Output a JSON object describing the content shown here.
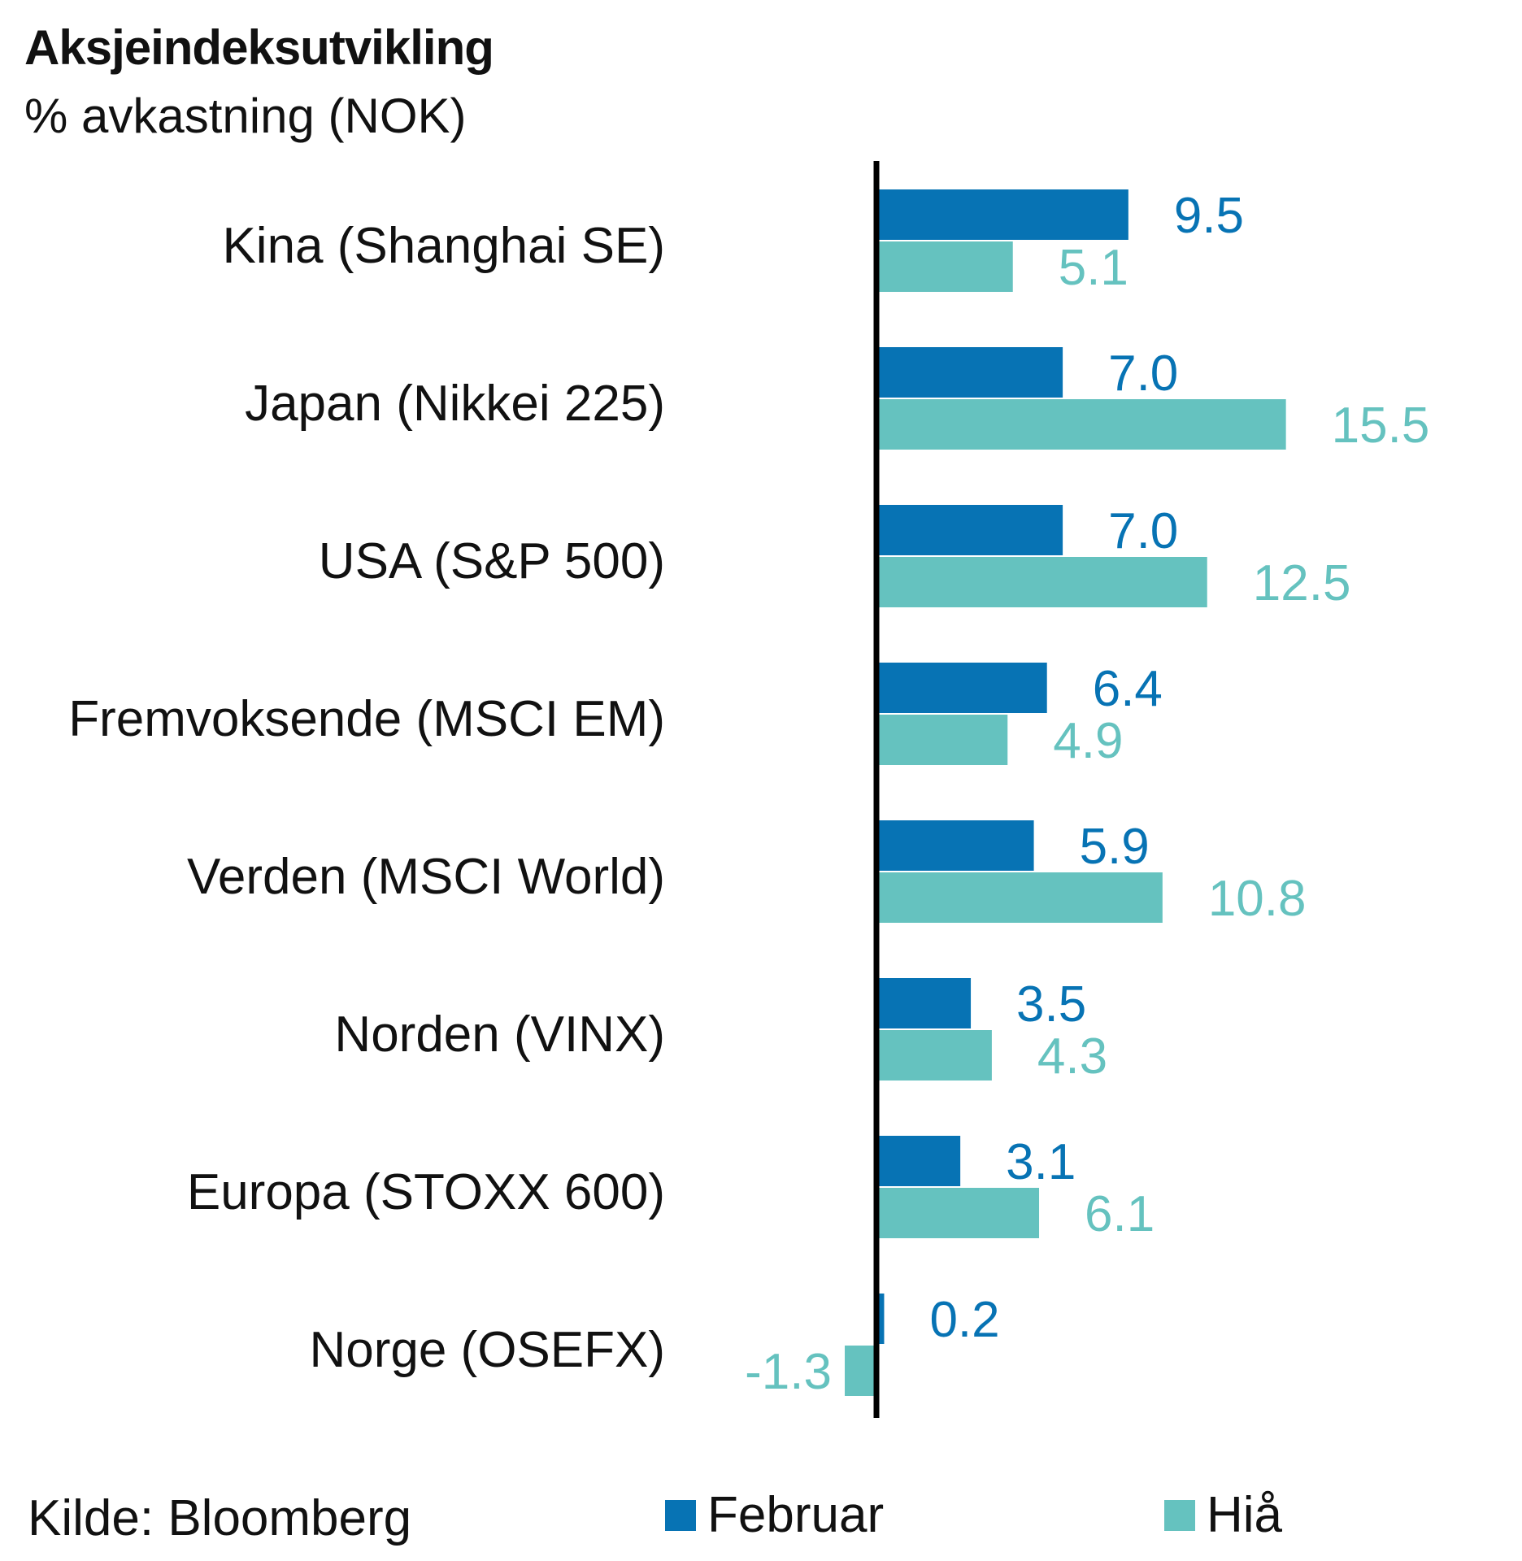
{
  "title": "Aksjeindeksutvikling",
  "subtitle": "% avkastning (NOK)",
  "source": "Kilde: Bloomberg",
  "colors": {
    "februar": "#0773b4",
    "hia": "#65c2bf",
    "axis": "#000000"
  },
  "chart_data": {
    "type": "bar",
    "orientation": "horizontal",
    "categories": [
      "Kina (Shanghai SE)",
      "Japan (Nikkei 225)",
      "USA (S&P 500)",
      "Fremvoksende (MSCI EM)",
      "Verden (MSCI World)",
      "Norden (VINX)",
      "Europa (STOXX 600)",
      "Norge (OSEFX)"
    ],
    "series": [
      {
        "name": "Februar",
        "values": [
          9.5,
          7.0,
          7.0,
          6.4,
          5.9,
          3.5,
          3.1,
          0.2
        ],
        "labels": [
          "9.5",
          "7.0",
          "7.0",
          "6.4",
          "5.9",
          "3.5",
          "3.1",
          "0.2"
        ]
      },
      {
        "name": "Hiå",
        "values": [
          5.1,
          15.5,
          12.5,
          4.9,
          10.8,
          4.3,
          6.1,
          -1.3
        ],
        "labels": [
          "5.1",
          "15.5",
          "12.5",
          "4.9",
          "10.8",
          "4.3",
          "6.1",
          "-1.3"
        ]
      }
    ],
    "legend": "bottom"
  }
}
